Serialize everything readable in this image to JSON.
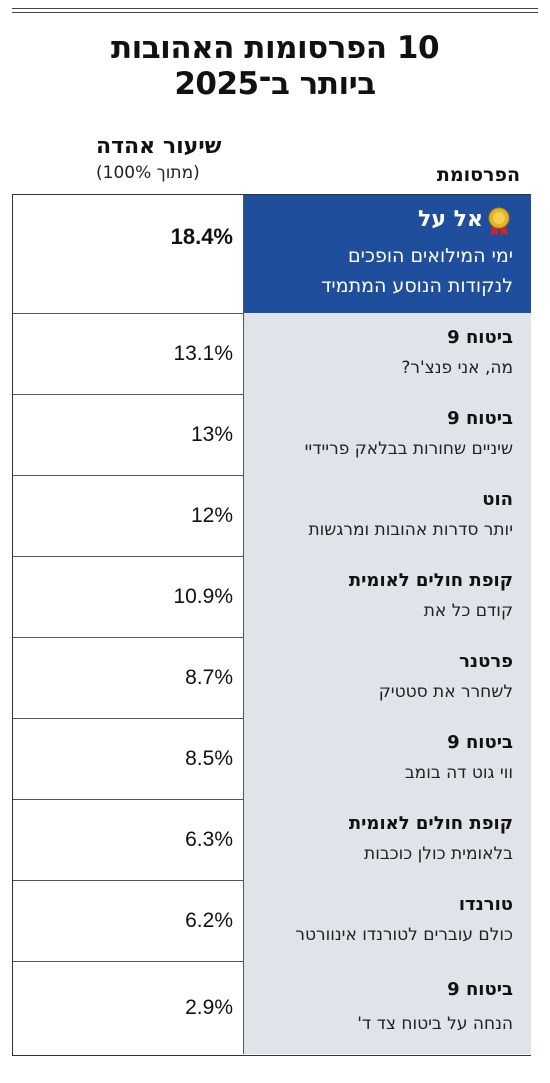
{
  "title": {
    "line1": "10 הפרסומות האהובות",
    "line2": "ביותר ב־2025"
  },
  "headers": {
    "metric": "שיעור אהדה",
    "metric_sub": "(מתוך 100%)",
    "campaign": "הפרסומת"
  },
  "colors": {
    "top_row_bg": "#1f4e9c",
    "row_bg": "#dfe3ea",
    "medal": "#e8b323",
    "ribbon": "#d2232a"
  },
  "top_icon": "gold-medal-icon",
  "rows": [
    {
      "brand": "אל על",
      "campaign_line1": "ימי המילואים הופכים",
      "campaign_line2": "לנקודות הנוסע המתמיד",
      "value": "18.4%"
    },
    {
      "brand": "ביטוח 9",
      "campaign": "מה, אני פנצ'ר?",
      "value": "13.1%"
    },
    {
      "brand": "ביטוח 9",
      "campaign": "שיניים שחורות בבלאק פריידיי",
      "value": "13%"
    },
    {
      "brand": "הוט",
      "campaign": "יותר סדרות אהובות ומרגשות",
      "value": "12%"
    },
    {
      "brand": "קופת חולים לאומית",
      "campaign": "קודם כל את",
      "value": "10.9%"
    },
    {
      "brand": "פרטנר",
      "campaign": "לשחרר את סטטיק",
      "value": "8.7%"
    },
    {
      "brand": "ביטוח 9",
      "campaign": "ווי גוט דה בומב",
      "value": "8.5%"
    },
    {
      "brand": "קופת חולים לאומית",
      "campaign": "בלאומית כולן כוכבות",
      "value": "6.3%"
    },
    {
      "brand": "טורנדו",
      "campaign": "כולם עוברים לטורנדו אינוורטר",
      "value": "6.2%"
    },
    {
      "brand": "ביטוח 9",
      "campaign": "הנחה על ביטוח צד ד'",
      "value": "2.9%"
    }
  ],
  "chart_data": {
    "type": "table",
    "title": "10 הפרסומות האהובות ביותר ב־2025",
    "columns": [
      "הפרסומת",
      "שיעור אהדה (מתוך 100%)"
    ],
    "rows": [
      [
        "אל על — ימי המילואים הופכים לנקודות הנוסע המתמיד",
        18.4
      ],
      [
        "ביטוח 9 — מה, אני פנצ'ר?",
        13.1
      ],
      [
        "ביטוח 9 — שיניים שחורות בבלאק פריידיי",
        13
      ],
      [
        "הוט — יותר סדרות אהובות ומרגשות",
        12
      ],
      [
        "קופת חולים לאומית — קודם כל את",
        10.9
      ],
      [
        "פרטנר — לשחרר את סטטיק",
        8.7
      ],
      [
        "ביטוח 9 — ווי גוט דה בומב",
        8.5
      ],
      [
        "קופת חולים לאומית — בלאומית כולן כוכבות",
        6.3
      ],
      [
        "טורנדו — כולם עוברים לטורנדו אינוורטר",
        6.2
      ],
      [
        "ביטוח 9 — הנחה על ביטוח צד ד'",
        2.9
      ]
    ]
  }
}
